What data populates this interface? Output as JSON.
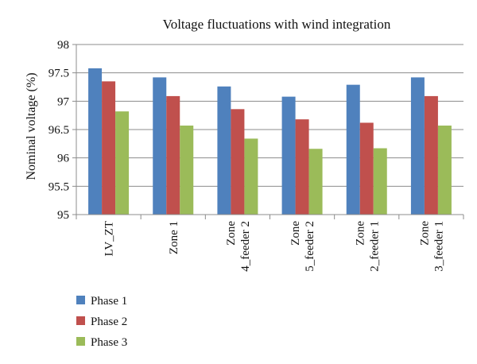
{
  "chart_data": {
    "type": "bar",
    "title": "Voltage fluctuations with wind integration",
    "ylabel": "Nominal voltage (%)",
    "xlabel": "",
    "ylim": [
      95,
      98
    ],
    "yticks": [
      "95",
      "95.5",
      "96",
      "96.5",
      "97",
      "97.5",
      "98"
    ],
    "grid": "horizontal",
    "legend_position": "bottom-left",
    "categories": [
      [
        "LV_ZT"
      ],
      [
        "Zone 1"
      ],
      [
        "Zone",
        "4_feeder 2"
      ],
      [
        "Zone",
        "5_feeder 2"
      ],
      [
        "Zone",
        "2_feeder 1"
      ],
      [
        "Zone",
        "3_feeder 1"
      ]
    ],
    "series": [
      {
        "name": "Phase 1",
        "color": "#4f81bd",
        "values": [
          97.58,
          97.42,
          97.26,
          97.08,
          97.29,
          97.42
        ]
      },
      {
        "name": "Phase 2",
        "color": "#c0504d",
        "values": [
          97.35,
          97.09,
          96.86,
          96.68,
          96.62,
          97.09
        ]
      },
      {
        "name": "Phase 3",
        "color": "#9bbb59",
        "values": [
          96.82,
          96.57,
          96.34,
          96.16,
          96.17,
          96.57
        ]
      }
    ]
  }
}
